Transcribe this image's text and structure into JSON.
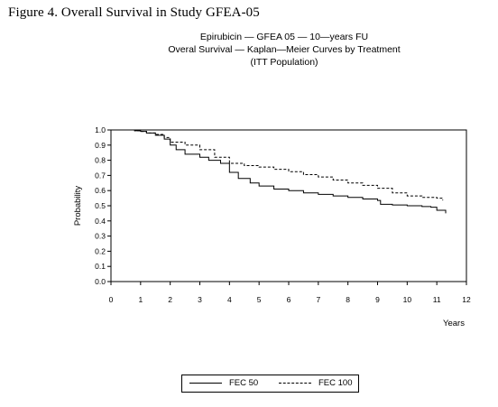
{
  "figure_caption": "Figure 4.  Overall Survival in Study GFEA-05",
  "chart_data": {
    "type": "line",
    "title": "Epirubicin — GFEA 05 — 10—years FU",
    "subtitle": "Overal Survival — Kaplan—Meier Curves by Treatment",
    "subtitle2": "(ITT Population)",
    "xlabel": "Years",
    "ylabel": "Probability",
    "xlim": [
      0,
      12
    ],
    "ylim": [
      0,
      1
    ],
    "xticks": [
      "0",
      "1",
      "2",
      "3",
      "4",
      "5",
      "6",
      "7",
      "8",
      "9",
      "10",
      "11",
      "12"
    ],
    "yticks": [
      "0.0",
      "0.1",
      "0.2",
      "0.3",
      "0.4",
      "0.5",
      "0.6",
      "0.7",
      "0.8",
      "0.9",
      "1.0"
    ],
    "grid": false,
    "legend_position": "bottom",
    "series": [
      {
        "name": "FEC  50",
        "style": "solid",
        "color": "#000000",
        "x": [
          0,
          0.5,
          0.8,
          1,
          1.2,
          1.5,
          1.8,
          2,
          2.2,
          2.5,
          3,
          3.3,
          3.7,
          4,
          4.3,
          4.7,
          5,
          5.5,
          6,
          6.5,
          7,
          7.5,
          8,
          8.5,
          9,
          9.1,
          9.5,
          10,
          10.5,
          10.8,
          11,
          11.3
        ],
        "y": [
          1.0,
          1.0,
          0.995,
          0.99,
          0.98,
          0.965,
          0.94,
          0.9,
          0.87,
          0.84,
          0.82,
          0.8,
          0.78,
          0.72,
          0.68,
          0.65,
          0.63,
          0.61,
          0.6,
          0.585,
          0.575,
          0.565,
          0.555,
          0.545,
          0.535,
          0.51,
          0.505,
          0.5,
          0.495,
          0.49,
          0.47,
          0.45
        ]
      },
      {
        "name": "FEC 100",
        "style": "dashed",
        "color": "#000000",
        "x": [
          0,
          0.5,
          0.8,
          1,
          1.2,
          1.5,
          1.8,
          2,
          2.5,
          3,
          3.5,
          4,
          4.5,
          5,
          5.5,
          6,
          6.5,
          7,
          7.5,
          8,
          8.5,
          9,
          9.5,
          10,
          10.5,
          11,
          11.2
        ],
        "y": [
          1.0,
          1.0,
          0.995,
          0.99,
          0.98,
          0.97,
          0.95,
          0.92,
          0.9,
          0.87,
          0.82,
          0.78,
          0.765,
          0.755,
          0.74,
          0.725,
          0.705,
          0.69,
          0.67,
          0.65,
          0.635,
          0.615,
          0.585,
          0.565,
          0.555,
          0.55,
          0.535
        ]
      }
    ]
  }
}
